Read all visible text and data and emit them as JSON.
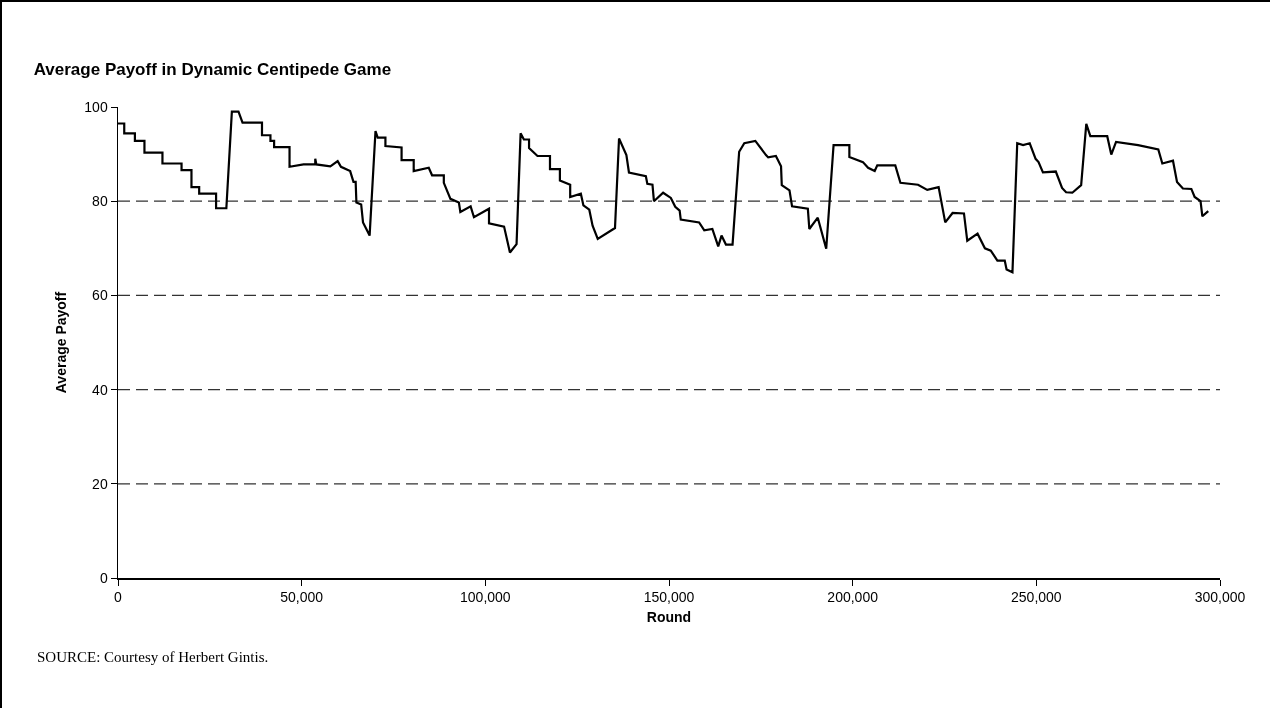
{
  "chart_data": {
    "type": "line",
    "title": "Average Payoff in Dynamic Centipede Game",
    "xlabel": "Round",
    "ylabel": "Average Payoff",
    "annotations": [
      "SOURCE: Courtesy of Herbert Gintis."
    ],
    "x": [
      0,
      1700,
      1700,
      4600,
      4600,
      7200,
      7200,
      12100,
      12100,
      17300,
      17300,
      20000,
      20000,
      22100,
      22100,
      26700,
      26700,
      29500,
      31000,
      32800,
      33900,
      39200,
      39200,
      41500,
      41500,
      42500,
      42500,
      46700,
      46700,
      50500,
      53700,
      53700,
      54000,
      57800,
      59800,
      60700,
      63200,
      64100,
      64700,
      64900,
      66200,
      66700,
      68500,
      70100,
      70700,
      72800,
      72800,
      77200,
      77200,
      80500,
      80500,
      84600,
      85500,
      88700,
      88700,
      90500,
      92800,
      93200,
      96000,
      96900,
      101000,
      101000,
      105100,
      106700,
      108500,
      109600,
      110500,
      111900,
      111900,
      114200,
      117600,
      117600,
      120300,
      120300,
      123100,
      123100,
      126000,
      126700,
      128300,
      129200,
      130600,
      135300,
      136400,
      138400,
      139100,
      143700,
      144100,
      145500,
      145900,
      148400,
      150500,
      151700,
      152900,
      153200,
      158200,
      159600,
      161800,
      163400,
      164300,
      165500,
      167300,
      169100,
      170500,
      173500,
      176400,
      177000,
      179100,
      180500,
      180700,
      182800,
      183500,
      187800,
      188200,
      190500,
      192800,
      194800,
      199100,
      199100,
      202800,
      204200,
      206000,
      206700,
      211600,
      213000,
      217800,
      220300,
      223400,
      225200,
      227200,
      230300,
      231200,
      234000,
      236000,
      237600,
      239400,
      241400,
      241900,
      243500,
      244800,
      246400,
      248200,
      249800,
      250600,
      251800,
      255300,
      257000,
      258100,
      259800,
      262200,
      263600,
      264700,
      269300,
      270400,
      271700,
      277700,
      283200,
      284300,
      287200,
      288300,
      289900,
      292200,
      293100,
      294700,
      295200,
      296800
    ],
    "series": [
      {
        "color": "#000000",
        "values": [
          96.5,
          96.5,
          94.4,
          94.4,
          92.8,
          92.8,
          90.3,
          90.3,
          88.0,
          88.0,
          86.6,
          86.6,
          83.0,
          83.0,
          81.6,
          81.6,
          78.5,
          78.5,
          99.0,
          99.0,
          96.7,
          96.7,
          94.0,
          94.0,
          92.8,
          92.8,
          91.5,
          91.5,
          87.3,
          87.8,
          87.8,
          89.0,
          87.8,
          87.4,
          88.5,
          87.3,
          86.4,
          84.1,
          84.1,
          79.7,
          79.3,
          75.5,
          72.7,
          94.9,
          93.5,
          93.5,
          91.7,
          91.4,
          88.7,
          88.7,
          86.4,
          87.1,
          85.5,
          85.5,
          83.9,
          80.5,
          79.7,
          77.7,
          78.9,
          76.6,
          78.4,
          75.3,
          74.6,
          69.1,
          70.9,
          94.4,
          93.1,
          93.1,
          91.3,
          89.6,
          89.6,
          86.8,
          86.8,
          84.4,
          83.5,
          80.9,
          81.6,
          79.1,
          78.2,
          74.8,
          72.0,
          74.3,
          93.3,
          89.8,
          86.1,
          85.3,
          83.7,
          83.5,
          80.0,
          81.8,
          80.7,
          78.8,
          78.0,
          76.1,
          75.5,
          73.8,
          74.1,
          70.4,
          72.7,
          70.8,
          70.8,
          90.5,
          92.3,
          92.8,
          89.8,
          89.3,
          89.6,
          87.4,
          83.4,
          82.3,
          78.9,
          78.4,
          74.1,
          76.5,
          69.9,
          91.9,
          91.9,
          89.4,
          88.3,
          87.1,
          86.4,
          87.6,
          87.6,
          83.9,
          83.5,
          82.4,
          83.0,
          75.5,
          77.5,
          77.4,
          71.6,
          73.1,
          70.0,
          69.5,
          67.4,
          67.4,
          65.5,
          64.9,
          92.3,
          91.9,
          92.3,
          89.0,
          88.3,
          86.1,
          86.3,
          82.8,
          81.9,
          81.8,
          83.4,
          96.4,
          93.8,
          93.8,
          89.9,
          92.6,
          91.9,
          91.0,
          88.0,
          88.6,
          84.1,
          82.7,
          82.6,
          80.9,
          80.0,
          76.8,
          77.9
        ]
      }
    ],
    "xlim": [
      0,
      300000
    ],
    "xticks": [
      0,
      {
        "value": 50000,
        "label": "50,000"
      },
      {
        "value": 100000,
        "label": "100,000"
      },
      {
        "value": 150000,
        "label": "150,000"
      },
      {
        "value": 200000,
        "label": "200,000"
      },
      {
        "value": 250000,
        "label": "250,000"
      },
      {
        "value": 300000,
        "label": "300,000"
      }
    ],
    "ylim": [
      0,
      100
    ],
    "yticks": [
      0,
      20,
      40,
      60,
      80,
      100
    ],
    "grid": "y",
    "line_style": "solid",
    "marker": "none"
  }
}
